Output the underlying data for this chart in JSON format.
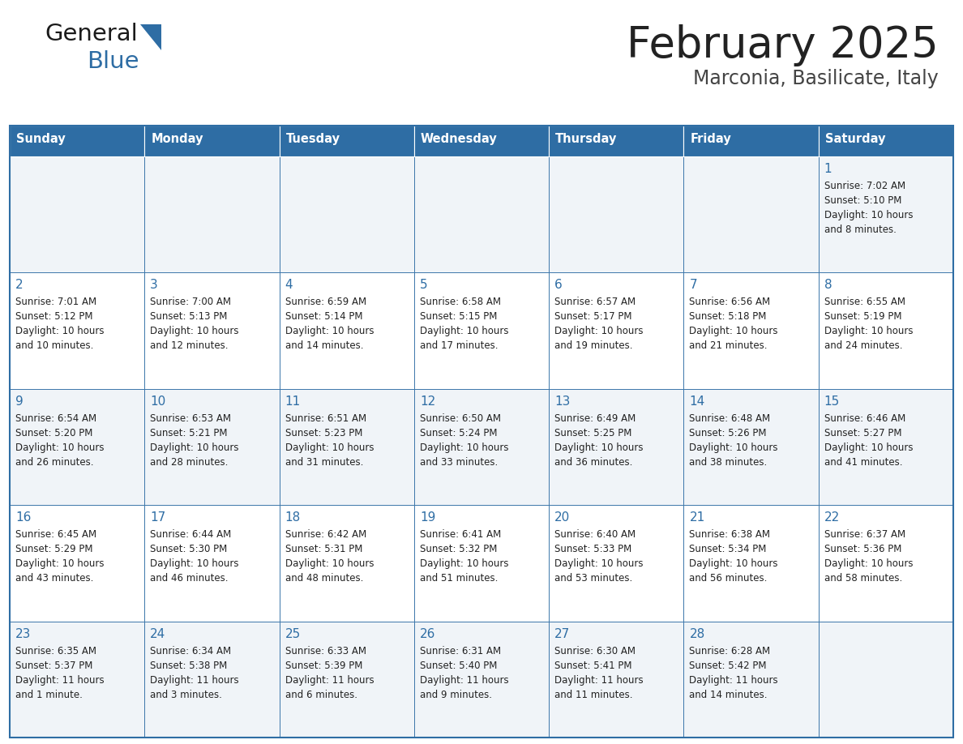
{
  "title": "February 2025",
  "subtitle": "Marconia, Basilicate, Italy",
  "header_bg": "#2E6DA4",
  "header_text_color": "#FFFFFF",
  "cell_bg_row0": "#F0F4F8",
  "cell_bg_row1": "#FFFFFF",
  "border_color": "#2E6DA4",
  "day_headers": [
    "Sunday",
    "Monday",
    "Tuesday",
    "Wednesday",
    "Thursday",
    "Friday",
    "Saturday"
  ],
  "title_color": "#222222",
  "subtitle_color": "#444444",
  "day_number_color": "#2E6DA4",
  "text_color": "#222222",
  "logo_general_color": "#1a1a1a",
  "logo_blue_color": "#2E6DA4",
  "logo_triangle_color": "#2E6DA4",
  "calendar": [
    [
      null,
      null,
      null,
      null,
      null,
      null,
      {
        "day": 1,
        "sunrise": "7:02 AM",
        "sunset": "5:10 PM",
        "daylight": "10 hours and 8 minutes."
      }
    ],
    [
      {
        "day": 2,
        "sunrise": "7:01 AM",
        "sunset": "5:12 PM",
        "daylight": "10 hours and 10 minutes."
      },
      {
        "day": 3,
        "sunrise": "7:00 AM",
        "sunset": "5:13 PM",
        "daylight": "10 hours and 12 minutes."
      },
      {
        "day": 4,
        "sunrise": "6:59 AM",
        "sunset": "5:14 PM",
        "daylight": "10 hours and 14 minutes."
      },
      {
        "day": 5,
        "sunrise": "6:58 AM",
        "sunset": "5:15 PM",
        "daylight": "10 hours and 17 minutes."
      },
      {
        "day": 6,
        "sunrise": "6:57 AM",
        "sunset": "5:17 PM",
        "daylight": "10 hours and 19 minutes."
      },
      {
        "day": 7,
        "sunrise": "6:56 AM",
        "sunset": "5:18 PM",
        "daylight": "10 hours and 21 minutes."
      },
      {
        "day": 8,
        "sunrise": "6:55 AM",
        "sunset": "5:19 PM",
        "daylight": "10 hours and 24 minutes."
      }
    ],
    [
      {
        "day": 9,
        "sunrise": "6:54 AM",
        "sunset": "5:20 PM",
        "daylight": "10 hours and 26 minutes."
      },
      {
        "day": 10,
        "sunrise": "6:53 AM",
        "sunset": "5:21 PM",
        "daylight": "10 hours and 28 minutes."
      },
      {
        "day": 11,
        "sunrise": "6:51 AM",
        "sunset": "5:23 PM",
        "daylight": "10 hours and 31 minutes."
      },
      {
        "day": 12,
        "sunrise": "6:50 AM",
        "sunset": "5:24 PM",
        "daylight": "10 hours and 33 minutes."
      },
      {
        "day": 13,
        "sunrise": "6:49 AM",
        "sunset": "5:25 PM",
        "daylight": "10 hours and 36 minutes."
      },
      {
        "day": 14,
        "sunrise": "6:48 AM",
        "sunset": "5:26 PM",
        "daylight": "10 hours and 38 minutes."
      },
      {
        "day": 15,
        "sunrise": "6:46 AM",
        "sunset": "5:27 PM",
        "daylight": "10 hours and 41 minutes."
      }
    ],
    [
      {
        "day": 16,
        "sunrise": "6:45 AM",
        "sunset": "5:29 PM",
        "daylight": "10 hours and 43 minutes."
      },
      {
        "day": 17,
        "sunrise": "6:44 AM",
        "sunset": "5:30 PM",
        "daylight": "10 hours and 46 minutes."
      },
      {
        "day": 18,
        "sunrise": "6:42 AM",
        "sunset": "5:31 PM",
        "daylight": "10 hours and 48 minutes."
      },
      {
        "day": 19,
        "sunrise": "6:41 AM",
        "sunset": "5:32 PM",
        "daylight": "10 hours and 51 minutes."
      },
      {
        "day": 20,
        "sunrise": "6:40 AM",
        "sunset": "5:33 PM",
        "daylight": "10 hours and 53 minutes."
      },
      {
        "day": 21,
        "sunrise": "6:38 AM",
        "sunset": "5:34 PM",
        "daylight": "10 hours and 56 minutes."
      },
      {
        "day": 22,
        "sunrise": "6:37 AM",
        "sunset": "5:36 PM",
        "daylight": "10 hours and 58 minutes."
      }
    ],
    [
      {
        "day": 23,
        "sunrise": "6:35 AM",
        "sunset": "5:37 PM",
        "daylight": "11 hours and 1 minute."
      },
      {
        "day": 24,
        "sunrise": "6:34 AM",
        "sunset": "5:38 PM",
        "daylight": "11 hours and 3 minutes."
      },
      {
        "day": 25,
        "sunrise": "6:33 AM",
        "sunset": "5:39 PM",
        "daylight": "11 hours and 6 minutes."
      },
      {
        "day": 26,
        "sunrise": "6:31 AM",
        "sunset": "5:40 PM",
        "daylight": "11 hours and 9 minutes."
      },
      {
        "day": 27,
        "sunrise": "6:30 AM",
        "sunset": "5:41 PM",
        "daylight": "11 hours and 11 minutes."
      },
      {
        "day": 28,
        "sunrise": "6:28 AM",
        "sunset": "5:42 PM",
        "daylight": "11 hours and 14 minutes."
      },
      null
    ]
  ]
}
